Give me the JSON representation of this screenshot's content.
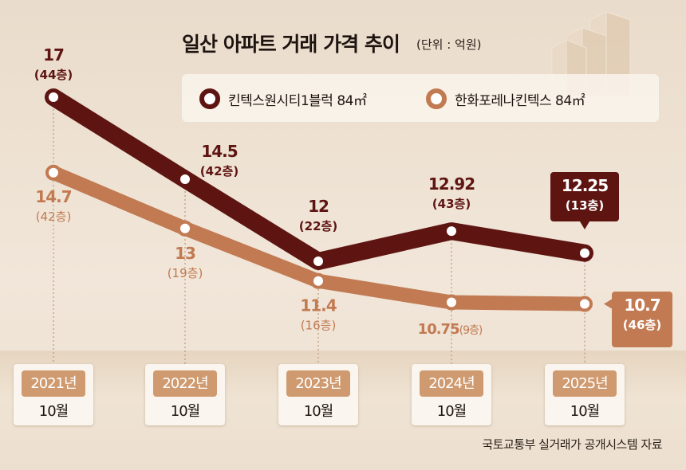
{
  "chart_data": {
    "type": "line",
    "title": "일산 아파트 거래 가격 추이",
    "unit": "(단위 : 억원)",
    "categories": [
      {
        "year": "2021년",
        "month": "10월"
      },
      {
        "year": "2022년",
        "month": "10월"
      },
      {
        "year": "2023년",
        "month": "10월"
      },
      {
        "year": "2024년",
        "month": "10월"
      },
      {
        "year": "2025년",
        "month": "10월"
      }
    ],
    "ylim": [
      9,
      19
    ],
    "grid": false,
    "series": [
      {
        "name": "킨텍스원시티1블럭 84㎡",
        "color": "#5e1512",
        "values": [
          17,
          14.5,
          12,
          12.92,
          12.25
        ],
        "labels": [
          "17",
          "14.5",
          "12",
          "12.92",
          "12.25"
        ],
        "floors": [
          "(44층)",
          "(42층)",
          "(22층)",
          "(43층)",
          "(13층)"
        ]
      },
      {
        "name": "한화포레나킨텍스 84㎡",
        "color": "#c27a52",
        "values": [
          14.7,
          13,
          11.4,
          10.75,
          10.7
        ],
        "labels": [
          "14.7",
          "13",
          "11.4",
          "10.75",
          "10.7"
        ],
        "floors": [
          "(42층)",
          "(19층)",
          "(16층)",
          "(9층)",
          "(46층)"
        ]
      }
    ],
    "legend": "top",
    "source": "국토교통부 실거래가 공개시스템 자료"
  }
}
